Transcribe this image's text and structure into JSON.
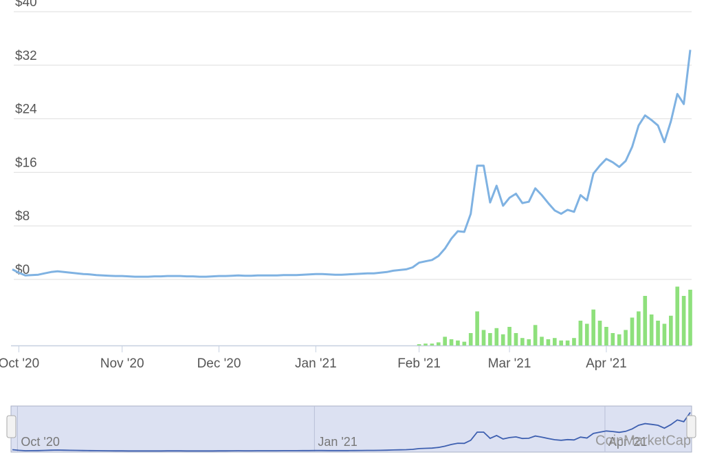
{
  "chart_data": {
    "type": "line",
    "categories": [
      null,
      "Oct '20",
      null,
      null,
      null,
      null,
      null,
      null,
      null,
      null,
      null,
      null,
      null,
      null,
      null,
      null,
      null,
      "Nov '20",
      null,
      null,
      null,
      null,
      null,
      null,
      null,
      null,
      null,
      null,
      null,
      null,
      null,
      null,
      "Dec '20",
      null,
      null,
      null,
      null,
      null,
      null,
      null,
      null,
      null,
      null,
      null,
      null,
      null,
      null,
      "Jan '21",
      null,
      null,
      null,
      null,
      null,
      null,
      null,
      null,
      null,
      null,
      null,
      null,
      null,
      null,
      null,
      "Feb '21",
      null,
      null,
      null,
      null,
      null,
      null,
      null,
      null,
      null,
      null,
      null,
      null,
      null,
      "Mar '21",
      null,
      null,
      null,
      null,
      null,
      null,
      null,
      null,
      null,
      null,
      null,
      null,
      null,
      null,
      "Apr '21",
      null,
      null,
      null,
      null,
      null,
      null,
      null,
      null,
      null,
      null,
      null,
      null,
      null
    ],
    "series": [
      {
        "type": "line",
        "color": "#7fb2e2",
        "values": [
          1.5,
          1.0,
          0.6,
          0.65,
          0.7,
          0.9,
          1.1,
          1.2,
          1.1,
          1.0,
          0.9,
          0.8,
          0.75,
          0.65,
          0.6,
          0.55,
          0.5,
          0.5,
          0.45,
          0.4,
          0.4,
          0.4,
          0.45,
          0.45,
          0.5,
          0.5,
          0.5,
          0.45,
          0.45,
          0.4,
          0.4,
          0.45,
          0.5,
          0.5,
          0.55,
          0.6,
          0.55,
          0.55,
          0.6,
          0.6,
          0.6,
          0.6,
          0.65,
          0.65,
          0.65,
          0.7,
          0.75,
          0.8,
          0.8,
          0.75,
          0.7,
          0.7,
          0.75,
          0.8,
          0.85,
          0.9,
          0.9,
          1.0,
          1.1,
          1.3,
          1.4,
          1.5,
          1.8,
          2.5,
          2.7,
          2.9,
          3.5,
          4.6,
          6.1,
          7.2,
          7.1,
          9.8,
          17.0,
          17.0,
          11.5,
          14.0,
          11.0,
          12.2,
          12.8,
          11.4,
          11.6,
          13.6,
          12.6,
          11.4,
          10.3,
          9.8,
          10.4,
          10.1,
          12.6,
          11.8,
          15.8,
          17.0,
          18.0,
          17.5,
          16.8,
          17.7,
          19.8,
          23.0,
          24.5,
          23.8,
          23.0,
          20.5,
          23.6,
          27.7,
          26.2,
          34.3
        ]
      },
      {
        "type": "bar",
        "axis": "y2",
        "color": "#8ee07c",
        "values": [
          null,
          null,
          null,
          null,
          null,
          null,
          null,
          null,
          null,
          null,
          null,
          null,
          null,
          null,
          null,
          null,
          null,
          null,
          null,
          null,
          null,
          null,
          null,
          null,
          null,
          null,
          null,
          null,
          null,
          null,
          null,
          null,
          null,
          null,
          null,
          null,
          null,
          null,
          null,
          null,
          null,
          null,
          null,
          null,
          null,
          null,
          null,
          null,
          null,
          null,
          null,
          null,
          null,
          null,
          null,
          null,
          null,
          null,
          null,
          null,
          null,
          null,
          null,
          2,
          3,
          3,
          5,
          14,
          10,
          8,
          6,
          20,
          55,
          25,
          20,
          28,
          18,
          30,
          20,
          12,
          10,
          33,
          14,
          10,
          12,
          8,
          8,
          12,
          40,
          35,
          58,
          40,
          30,
          20,
          18,
          25,
          45,
          55,
          80,
          50,
          40,
          35,
          48,
          95,
          80,
          90
        ]
      }
    ],
    "ylim": [
      0,
      40
    ],
    "yticks": [
      {
        "value": 0,
        "label": "$0"
      },
      {
        "value": 8,
        "label": "$8"
      },
      {
        "value": 16,
        "label": "$16"
      },
      {
        "value": 24,
        "label": "$24"
      },
      {
        "value": 32,
        "label": "$32"
      },
      {
        "value": 40,
        "label": "$40"
      }
    ],
    "y2lim": [
      0,
      100
    ],
    "grid": true,
    "watermark": "CoinMarketCap"
  }
}
